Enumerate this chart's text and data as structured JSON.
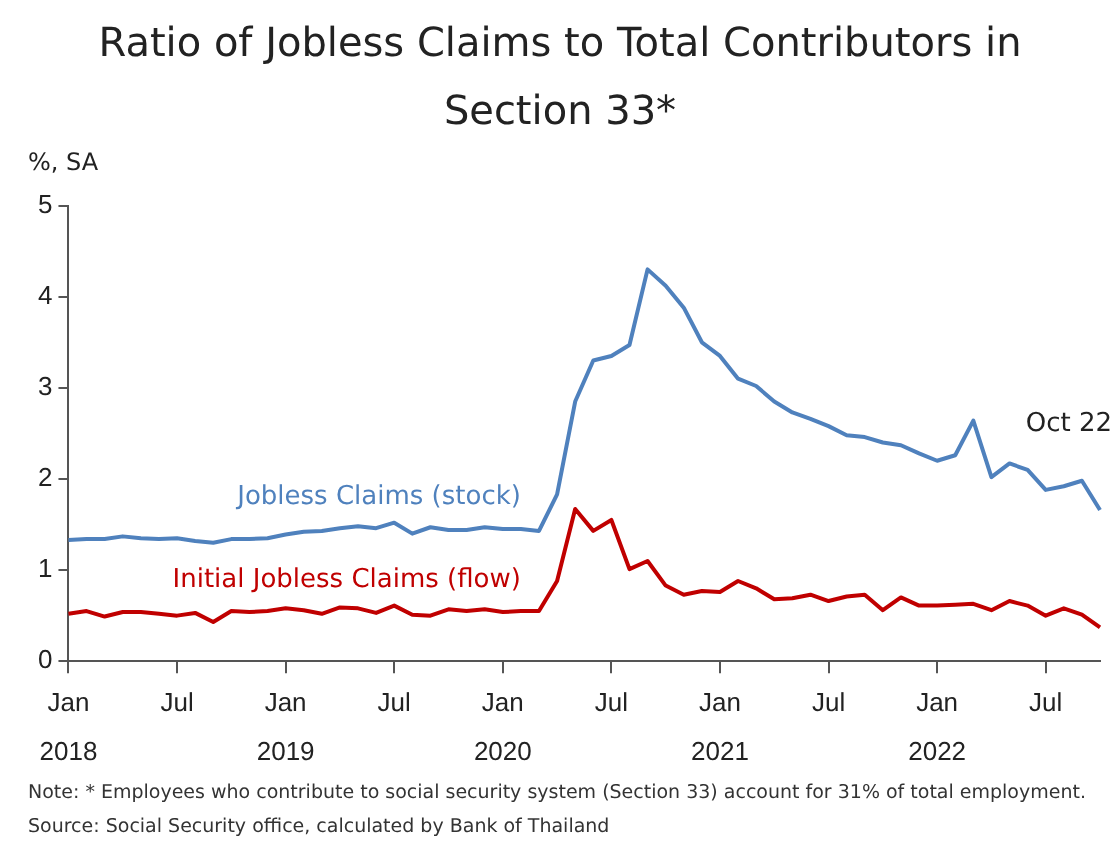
{
  "chart_data": {
    "type": "line",
    "title": "Ratio of Jobless Claims to Total Contributors in Section 33*",
    "ylabel": "%, SA",
    "categories": [
      "Jan 2018",
      null,
      null,
      null,
      null,
      null,
      "Jul",
      null,
      null,
      null,
      null,
      null,
      "Jan 2019",
      null,
      null,
      null,
      null,
      null,
      "Jul",
      null,
      null,
      null,
      null,
      null,
      "Jan 2020",
      null,
      null,
      null,
      null,
      null,
      "Jul",
      null,
      null,
      null,
      null,
      null,
      "Jan 2021",
      null,
      null,
      null,
      null,
      null,
      "Jul",
      null,
      null,
      null,
      null,
      null,
      "Jan 2022",
      null,
      null,
      null,
      null,
      null,
      "Jul",
      null,
      null,
      null
    ],
    "series": [
      {
        "name": "Jobless Claims (stock)",
        "color": "#4f81bd",
        "values": [
          1.33,
          1.34,
          1.34,
          1.37,
          1.35,
          1.34,
          1.35,
          1.32,
          1.3,
          1.34,
          1.34,
          1.35,
          1.39,
          1.42,
          1.43,
          1.46,
          1.48,
          1.46,
          1.52,
          1.4,
          1.47,
          1.44,
          1.44,
          1.47,
          1.45,
          1.45,
          1.43,
          1.83,
          2.85,
          3.3,
          3.35,
          3.47,
          4.3,
          4.12,
          3.88,
          3.5,
          3.35,
          3.1,
          3.02,
          2.85,
          2.73,
          2.66,
          2.58,
          2.48,
          2.46,
          2.4,
          2.37,
          2.28,
          2.2,
          2.26,
          2.64,
          2.02,
          2.17,
          2.1,
          1.88,
          1.92,
          1.98,
          1.66
        ]
      },
      {
        "name": "Initial Jobless Claims (flow)",
        "color": "#c00000",
        "values": [
          0.52,
          0.55,
          0.49,
          0.54,
          0.54,
          0.52,
          0.5,
          0.53,
          0.43,
          0.55,
          0.54,
          0.55,
          0.58,
          0.56,
          0.52,
          0.59,
          0.58,
          0.53,
          0.61,
          0.51,
          0.5,
          0.57,
          0.55,
          0.57,
          0.54,
          0.55,
          0.55,
          0.88,
          1.67,
          1.43,
          1.55,
          1.01,
          1.1,
          0.83,
          0.73,
          0.77,
          0.76,
          0.88,
          0.8,
          0.68,
          0.69,
          0.73,
          0.66,
          0.71,
          0.73,
          0.56,
          0.7,
          0.61,
          0.61,
          0.62,
          0.63,
          0.56,
          0.66,
          0.61,
          0.5,
          0.58,
          0.51,
          0.37
        ]
      }
    ],
    "ylim": [
      0,
      5
    ],
    "yticks": [
      0,
      1,
      2,
      3,
      4,
      5
    ],
    "grid": false,
    "legend": false,
    "marker": "none",
    "line_style": "solid",
    "annotations": [
      "Oct 22",
      "Note: * Employees who contribute to social security system (Section 33) account for 31% of total employment.",
      "Source: Social Security office, calculated by Bank of Thailand"
    ]
  }
}
